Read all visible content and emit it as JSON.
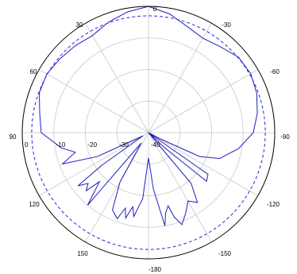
{
  "chart_data": {
    "type": "polar",
    "title": "",
    "angle_direction": "clockwise",
    "angle_zero": "top",
    "angle_ticks": [
      "0",
      "30",
      "60",
      "90",
      "120",
      "150",
      "-180",
      "-150",
      "-120",
      "-90",
      "-60",
      "-30"
    ],
    "radial_ticks": [
      "0",
      "-10",
      "-20",
      "-30",
      "-40"
    ],
    "r_min": -40,
    "r_max": 0,
    "grid": true,
    "series": [
      {
        "style": "solid",
        "color": "#1f1fbf",
        "theta": [
          0,
          10,
          20,
          30,
          40,
          50,
          60,
          70,
          80,
          90,
          100,
          110,
          115,
          118,
          120,
          125,
          130,
          133,
          135,
          140,
          145,
          150,
          155,
          160,
          163,
          165,
          168,
          170,
          175,
          180,
          185,
          190,
          192,
          195,
          197,
          200,
          205,
          210,
          215,
          220,
          225,
          227,
          230,
          233,
          235,
          240,
          245,
          250,
          255,
          260,
          270,
          280,
          290,
          300,
          310,
          320,
          330,
          340,
          350
        ],
        "r": [
          0,
          -1.8,
          -4.2,
          -5.5,
          -4.5,
          -2.8,
          -2.6,
          -3.5,
          -5,
          -6.8,
          -11,
          -16,
          -22,
          -36,
          -40,
          -17,
          -16,
          -33,
          -40,
          -19,
          -13,
          -15,
          -12,
          -9,
          -12,
          -16,
          -14,
          -10,
          -22,
          -32,
          -19,
          -13,
          -16,
          -12,
          -15,
          -11,
          -13,
          -22,
          -36,
          -10,
          -18,
          -13,
          -15,
          -12,
          -22,
          -38,
          -22,
          -11,
          -16,
          -12,
          -6,
          -5,
          -3.2,
          -2.8,
          -3.5,
          -4,
          -4.5,
          -2.8,
          -1.2
        ]
      },
      {
        "style": "dashed",
        "color": "#2828e0",
        "theta": [
          0,
          90,
          180,
          270
        ],
        "r": [
          -3,
          -3,
          -3,
          -3
        ]
      }
    ]
  }
}
